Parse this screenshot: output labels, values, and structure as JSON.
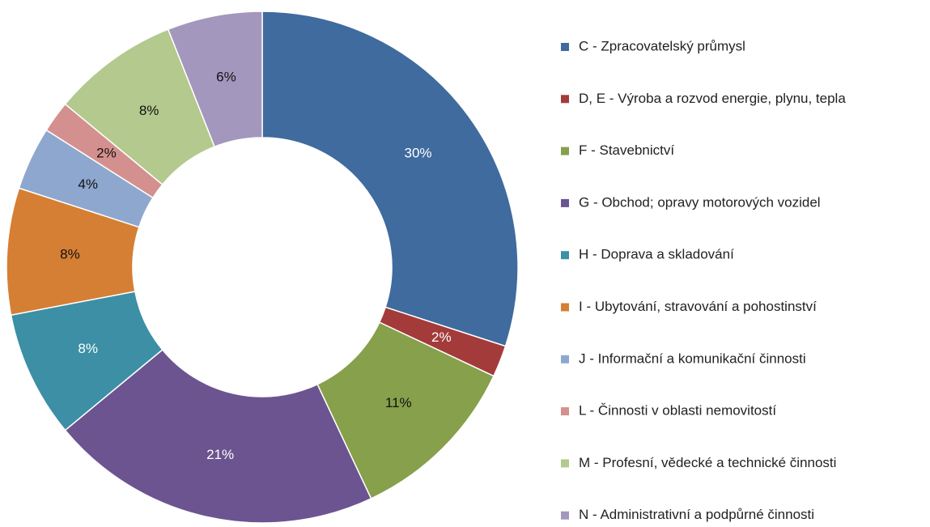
{
  "chart_data": {
    "type": "donut",
    "categories": [
      "C - Zpracovatelský průmysl",
      "D, E - Výroba a rozvod energie, plynu, tepla",
      "F - Stavebnictví",
      "G - Obchod; opravy motorových vozidel",
      "H - Doprava a skladování",
      "I - Ubytování, stravování a pohostinství",
      "J - Informační a komunikační činnosti",
      "L - Činnosti v oblasti nemovitostí",
      "M - Profesní, vědecké a technické činnosti",
      "N - Administrativní a podpůrné činnosti"
    ],
    "values": [
      30,
      2,
      11,
      21,
      8,
      8,
      4,
      2,
      8,
      6
    ],
    "value_labels": [
      "30%",
      "2%",
      "11%",
      "21%",
      "8%",
      "8%",
      "4%",
      "2%",
      "8%",
      "6%"
    ],
    "colors": [
      "#3f6b9e",
      "#a33b3a",
      "#86a04b",
      "#6c5490",
      "#3c8fa5",
      "#d57f35",
      "#8ea7cf",
      "#d4908e",
      "#b3c98d",
      "#a497bd"
    ],
    "legend": "right"
  }
}
